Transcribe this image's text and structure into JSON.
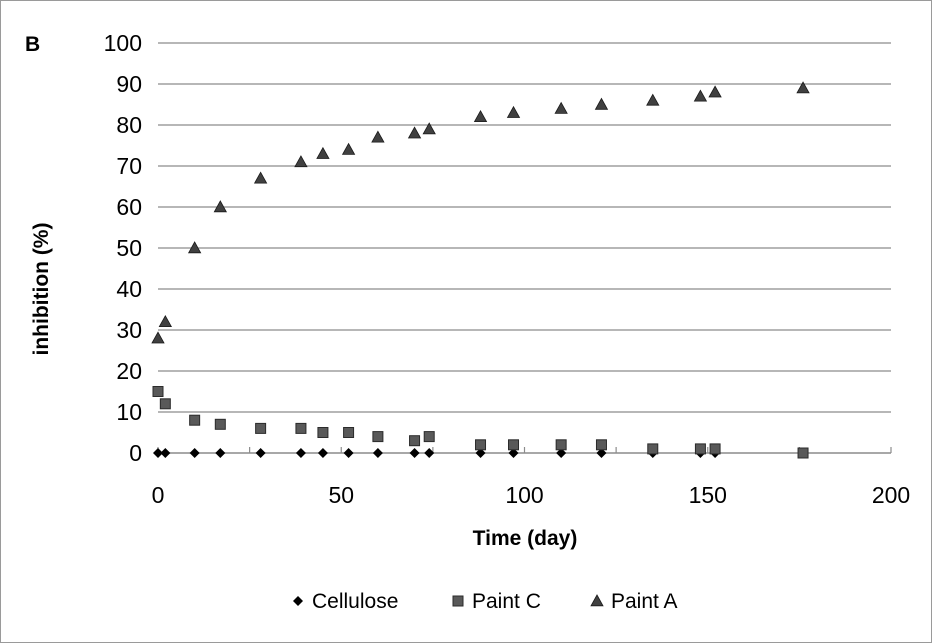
{
  "chart_data": {
    "type": "scatter",
    "panel_label": "B",
    "xlabel": "Time (day)",
    "ylabel": "inhibition (%)",
    "xlim": [
      0,
      200
    ],
    "ylim": [
      0,
      100
    ],
    "xticks": [
      0,
      50,
      100,
      150,
      200
    ],
    "yticks": [
      0,
      10,
      20,
      30,
      40,
      50,
      60,
      70,
      80,
      90,
      100
    ],
    "grid": "horizontal",
    "legend_position": "bottom",
    "series": [
      {
        "name": "Cellulose",
        "marker": "diamond",
        "color": "#000000",
        "x": [
          0,
          2,
          10,
          17,
          28,
          39,
          45,
          52,
          60,
          70,
          74,
          88,
          97,
          110,
          121,
          135,
          148,
          152
        ],
        "y": [
          0,
          0,
          0,
          0,
          0,
          0,
          0,
          0,
          0,
          0,
          0,
          0,
          0,
          0,
          0,
          0,
          0,
          0
        ]
      },
      {
        "name": "Paint C",
        "marker": "square",
        "color": "#595959",
        "x": [
          0,
          2,
          10,
          17,
          28,
          39,
          45,
          52,
          60,
          70,
          74,
          88,
          97,
          110,
          121,
          135,
          148,
          152,
          176
        ],
        "y": [
          15,
          12,
          8,
          7,
          6,
          6,
          5,
          5,
          4,
          3,
          4,
          2,
          2,
          2,
          2,
          1,
          1,
          1,
          0
        ]
      },
      {
        "name": "Paint A",
        "marker": "triangle",
        "color": "#404040",
        "x": [
          0,
          2,
          10,
          17,
          28,
          39,
          45,
          52,
          60,
          70,
          74,
          88,
          97,
          110,
          121,
          135,
          148,
          152,
          176
        ],
        "y": [
          28,
          32,
          50,
          60,
          67,
          71,
          73,
          74,
          77,
          78,
          79,
          82,
          83,
          84,
          85,
          86,
          87,
          88,
          89
        ]
      }
    ]
  }
}
